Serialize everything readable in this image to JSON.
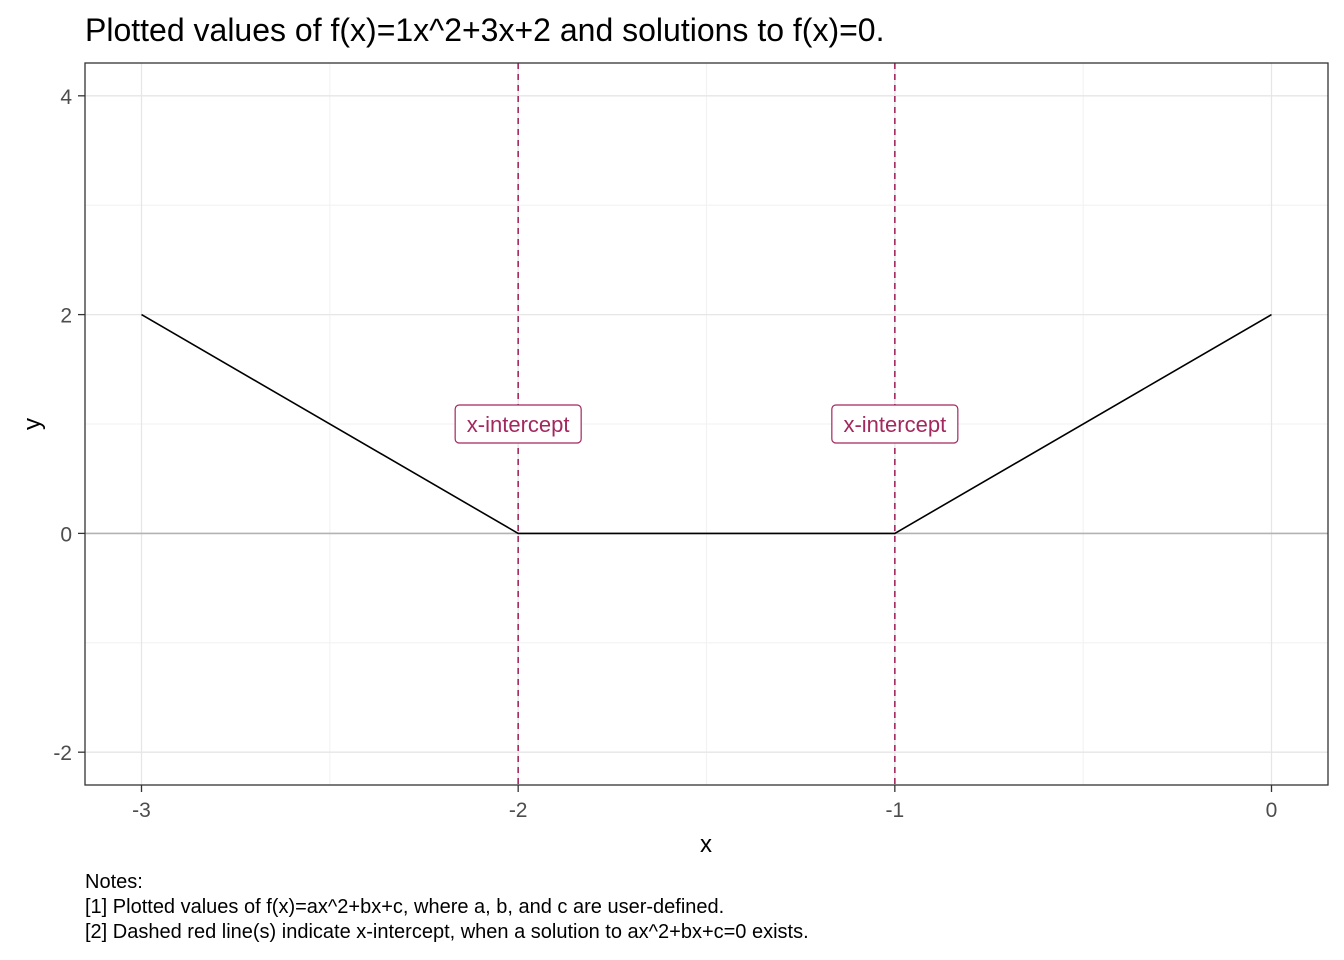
{
  "colors": {
    "line": "#000000",
    "intercept": "#A3285E",
    "grid_major": "#E6E6E6",
    "grid_minor": "#F2F2F2",
    "zero_line": "#B3B3B3",
    "axis_text": "#4D4D4D",
    "border": "#333333"
  },
  "chart_data": {
    "type": "line",
    "title": "Plotted values of f(x)=1x^2+3x+2 and solutions to f(x)=0.",
    "xlabel": "x",
    "ylabel": "y",
    "xlim": [
      -3.15,
      0.15
    ],
    "ylim": [
      -2.3,
      4.3
    ],
    "x_ticks": [
      -3,
      -2,
      -1,
      0
    ],
    "x_tick_labels": [
      "-3",
      "-2",
      "-1",
      "0"
    ],
    "y_ticks": [
      -2,
      0,
      2,
      4
    ],
    "y_tick_labels": [
      "-2",
      "0",
      "2",
      "4"
    ],
    "grid": true,
    "series": [
      {
        "x": [
          -3,
          -2,
          -1,
          0
        ],
        "y": [
          2,
          0,
          0,
          2
        ]
      }
    ],
    "x_intercepts": [
      -2,
      -1
    ],
    "annotations": [
      {
        "text": "x-intercept",
        "x": -2,
        "y": 1
      },
      {
        "text": "x-intercept",
        "x": -1,
        "y": 1
      }
    ]
  },
  "notes": {
    "heading": "Notes:",
    "lines": [
      "[1] Plotted values of f(x)=ax^2+bx+c, where a, b, and c are user-defined.",
      "[2] Dashed red line(s) indicate x-intercept, when a solution to ax^2+bx+c=0 exists."
    ]
  }
}
